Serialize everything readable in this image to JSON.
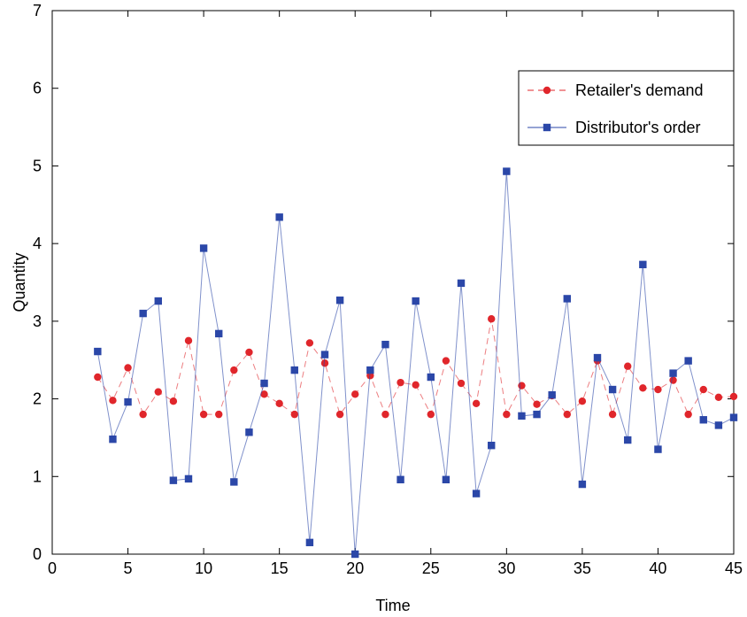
{
  "chart_data": {
    "type": "line",
    "title": "",
    "xlabel": "Time",
    "ylabel": "Quantity",
    "xlim": [
      0,
      45
    ],
    "ylim": [
      0,
      7
    ],
    "x_ticks": [
      0,
      5,
      10,
      15,
      20,
      25,
      30,
      35,
      40,
      45
    ],
    "y_ticks": [
      0,
      1,
      2,
      3,
      4,
      5,
      6,
      7
    ],
    "grid": false,
    "legend_position": "top-right",
    "x": [
      3,
      4,
      5,
      6,
      7,
      8,
      9,
      10,
      11,
      12,
      13,
      14,
      15,
      16,
      17,
      18,
      19,
      20,
      21,
      22,
      23,
      24,
      25,
      26,
      27,
      28,
      29,
      30,
      31,
      32,
      33,
      34,
      35,
      36,
      37,
      38,
      39,
      40,
      41,
      42,
      43,
      44,
      45
    ],
    "series": [
      {
        "name": "Retailer's demand",
        "color": "#e0262b",
        "line_style": "dashed",
        "marker": "circle",
        "values": [
          2.28,
          1.98,
          2.4,
          1.8,
          2.09,
          1.97,
          2.75,
          1.8,
          1.8,
          2.37,
          2.6,
          2.06,
          1.94,
          1.8,
          2.72,
          2.46,
          1.8,
          2.06,
          2.3,
          1.8,
          2.21,
          2.18,
          1.8,
          2.49,
          2.2,
          1.94,
          3.03,
          1.8,
          2.17,
          1.93,
          2.04,
          1.8,
          1.97,
          2.49,
          1.8,
          2.42,
          2.14,
          2.12,
          2.24,
          1.8,
          2.12,
          2.02,
          2.03
        ]
      },
      {
        "name": "Distributor's order",
        "color": "#2b47a8",
        "line_style": "solid",
        "marker": "square",
        "values": [
          2.61,
          1.48,
          1.96,
          3.1,
          3.26,
          0.95,
          0.97,
          3.94,
          2.84,
          0.93,
          1.57,
          2.2,
          4.34,
          2.37,
          0.15,
          2.57,
          3.27,
          0.0,
          2.37,
          2.7,
          0.96,
          3.26,
          2.28,
          0.96,
          3.49,
          0.78,
          1.4,
          4.93,
          1.78,
          1.8,
          2.05,
          3.29,
          0.9,
          2.53,
          2.12,
          1.47,
          3.73,
          1.35,
          2.33,
          2.49,
          1.73,
          1.66,
          1.76
        ]
      }
    ]
  }
}
